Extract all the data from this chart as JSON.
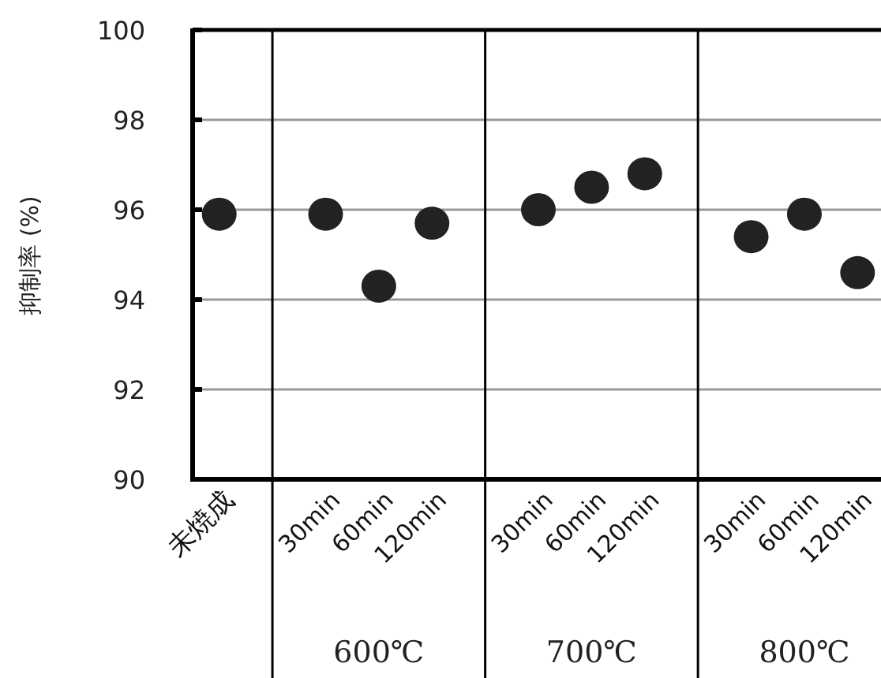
{
  "chart_data": {
    "type": "scatter",
    "ylabel": "抑制率 (%)",
    "categories": [
      "未焼成",
      "30min",
      "60min",
      "120min",
      "30min",
      "60min",
      "120min",
      "30min",
      "60min",
      "120min"
    ],
    "values": [
      95.9,
      95.9,
      94.3,
      95.7,
      96.0,
      96.5,
      96.8,
      95.4,
      95.9,
      94.6
    ],
    "color": "#222222",
    "marker": "circle",
    "ylim": [
      90,
      100
    ],
    "yticks": [
      90,
      92,
      94,
      96,
      98,
      100
    ],
    "grid": "y",
    "annotations": [
      "600℃",
      "700℃",
      "800℃"
    ]
  }
}
